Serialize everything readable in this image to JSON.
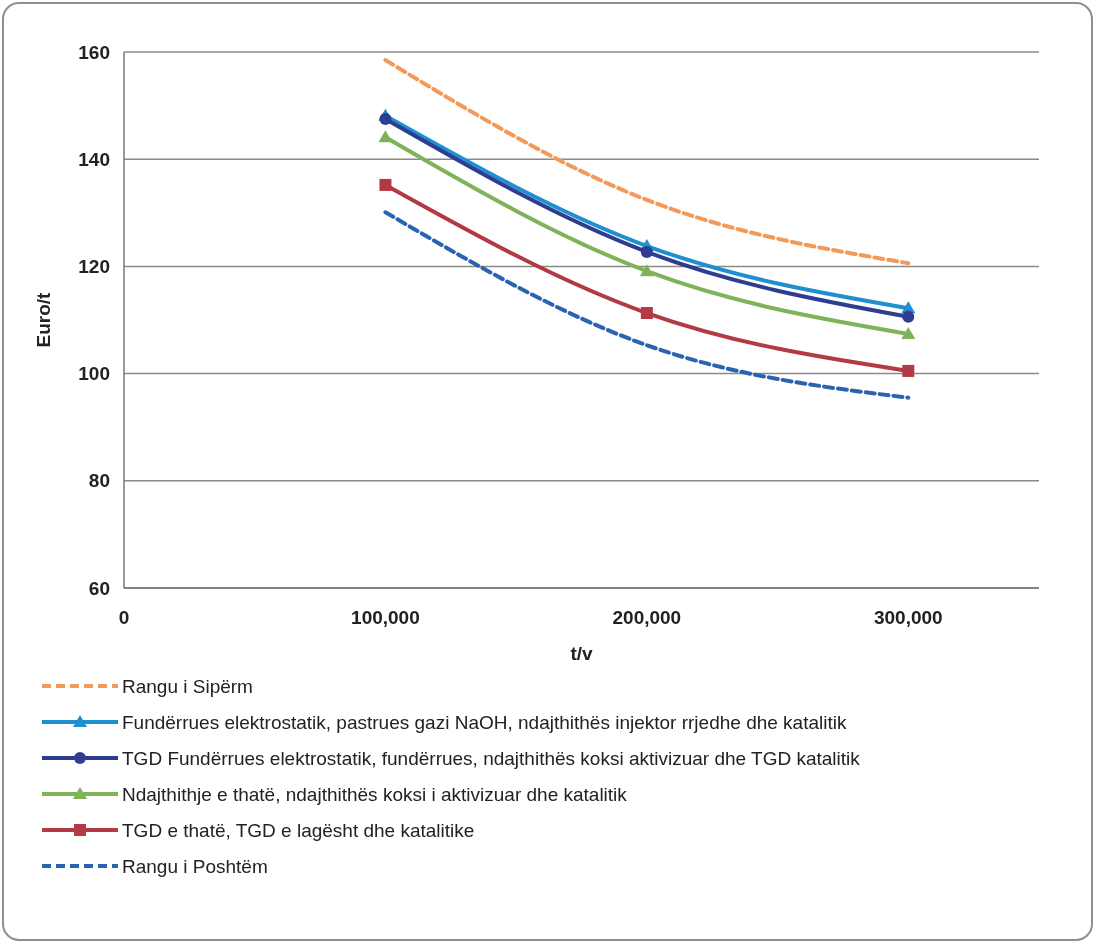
{
  "chart_data": {
    "type": "line",
    "xlabel": "t/v",
    "ylabel": "Euro/t",
    "x": [
      100000,
      200000,
      300000
    ],
    "xlim": [
      0,
      350000
    ],
    "xticks": [
      0,
      {
        "value": 100000,
        "label": "100,000"
      },
      {
        "value": 200000,
        "label": "200,000"
      },
      {
        "value": 300000,
        "label": "300,000"
      }
    ],
    "ylim": [
      60,
      160
    ],
    "yticks": [
      60,
      80,
      100,
      120,
      140,
      160
    ],
    "grid": "y",
    "legend": "bottom",
    "series": [
      {
        "name": "Rangu i Sipërm",
        "color": "#f39a5a",
        "values": [
          158.5,
          132.4,
          120.6
        ],
        "marker": "none",
        "line_style": "dashed"
      },
      {
        "name": "Fundërrues elektrostatik, pastrues gazi NaOH, ndajthithës injektor rrjedhe dhe katalitik",
        "color": "#1f8fd0",
        "values": [
          148.1,
          123.8,
          112.2
        ],
        "marker": "triangle",
        "line_style": "solid"
      },
      {
        "name": "TGD Fundërrues elektrostatik, fundërrues, ndajthithës koksi aktivizuar dhe TGD katalitik",
        "color": "#2e3d8f",
        "values": [
          147.5,
          122.7,
          110.6
        ],
        "marker": "circle",
        "line_style": "solid"
      },
      {
        "name": "Ndajthithje e thatë, ndajthithës koksi i aktivizuar dhe katalitik",
        "color": "#7fb35a",
        "values": [
          144.1,
          119.1,
          107.4
        ],
        "marker": "triangle",
        "line_style": "solid"
      },
      {
        "name": "TGD e thatë, TGD e lagësht dhe katalitike",
        "color": "#b23a45",
        "values": [
          135.2,
          111.3,
          100.5
        ],
        "marker": "square",
        "line_style": "solid"
      },
      {
        "name": "Rangu i Poshtëm",
        "color": "#2a64b0",
        "values": [
          130.1,
          105.3,
          95.5
        ],
        "marker": "none",
        "line_style": "dashed"
      }
    ]
  }
}
